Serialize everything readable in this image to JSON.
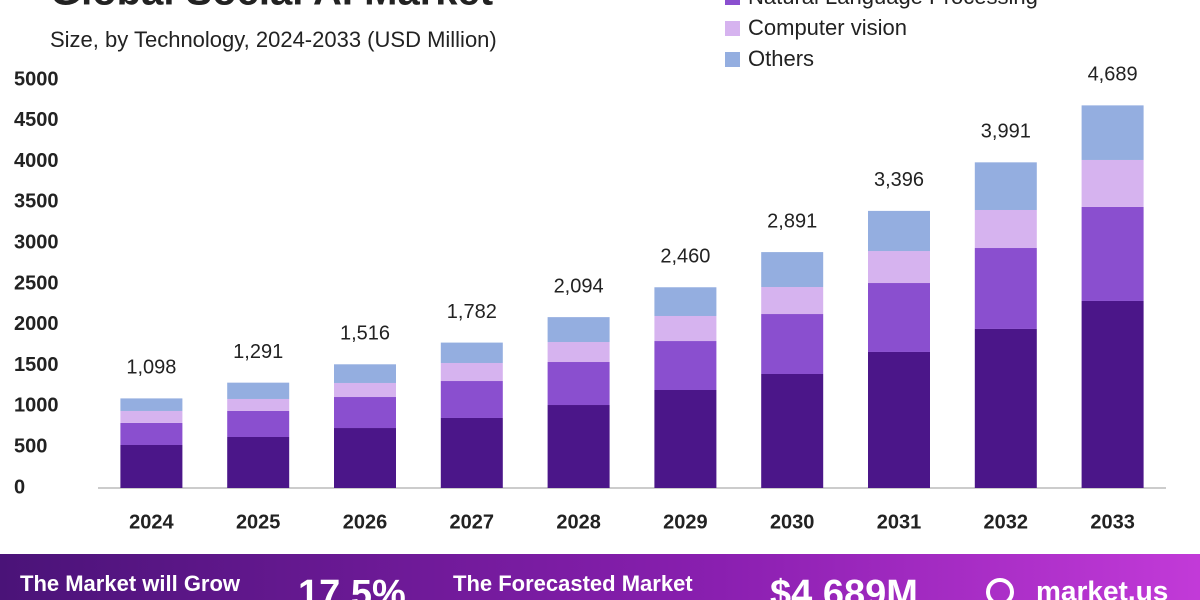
{
  "chart_data": {
    "type": "stacked_bar",
    "title": "Global Social AI Market",
    "subtitle": "Size, by Technology, 2024-2033 (USD Million)",
    "categories": [
      "2024",
      "2025",
      "2026",
      "2027",
      "2028",
      "2029",
      "2030",
      "2031",
      "2032",
      "2033"
    ],
    "series": [
      {
        "name": null,
        "color": "#4b1689",
        "values": [
          527,
          625,
          735,
          858,
          1017,
          1201,
          1397,
          1667,
          1949,
          2292
        ]
      },
      {
        "name": "Natural Language Processing",
        "color": "#8a4fcf",
        "values": [
          270,
          319,
          380,
          453,
          527,
          600,
          735,
          845,
          992,
          1152
        ]
      },
      {
        "name": "Computer vision",
        "color": "#d6b3ef",
        "values": [
          147,
          147,
          172,
          221,
          245,
          307,
          331,
          392,
          466,
          576
        ]
      },
      {
        "name": "Others",
        "color": "#94aee0",
        "values": [
          154,
          200,
          229,
          250,
          305,
          352,
          428,
          492,
          584,
          669
        ]
      }
    ],
    "totals": {
      "values": [
        1098,
        1291,
        1516,
        1782,
        2094,
        2460,
        2891,
        3396,
        3991,
        4689
      ],
      "value_labels": [
        "1,098",
        "1,291",
        "1,516",
        "1,782",
        "2,094",
        "2,460",
        "2,891",
        "3,396",
        "3,991",
        "4,689"
      ]
    },
    "ylim": [
      0,
      5000
    ],
    "yticks": [
      0,
      500,
      1000,
      1500,
      2000,
      2500,
      3000,
      3500,
      4000,
      4500,
      5000
    ],
    "banner": {
      "grow_text": "The Market will Grow",
      "cagr": "17.5%",
      "forecast_text": "The Forecasted Market",
      "forecast_value": "$4,689M",
      "brand": "market.us"
    }
  }
}
